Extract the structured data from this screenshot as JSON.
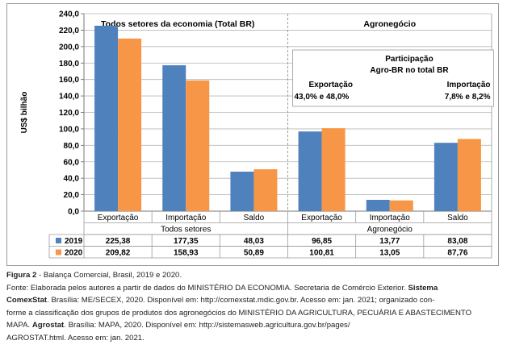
{
  "chart_data": {
    "type": "bar",
    "ylabel": "US$ bilhão",
    "ylim": [
      0,
      240
    ],
    "yticks": [
      "0,0",
      "20,0",
      "40,0",
      "60,0",
      "80,0",
      "100,0",
      "120,0",
      "140,0",
      "160,0",
      "180,0",
      "200,0",
      "220,0",
      "240,0"
    ],
    "grid": true,
    "panels": [
      {
        "title": "Todos setores da economia (Total BR)",
        "group_label": "Todos setores"
      },
      {
        "title": "Agronegócio",
        "group_label": "Agronegócio"
      }
    ],
    "categories": [
      "Exportação",
      "Importação",
      "Saldo",
      "Exportação",
      "Importação",
      "Saldo"
    ],
    "series": [
      {
        "name": "2019",
        "color": "#4f81bd",
        "values": [
          225.38,
          177.35,
          48.03,
          96.85,
          13.77,
          83.08
        ],
        "labels": [
          "225,38",
          "177,35",
          "48,03",
          "96,85",
          "13,77",
          "83,08"
        ]
      },
      {
        "name": "2020",
        "color": "#f79646",
        "values": [
          209.82,
          158.93,
          50.89,
          100.81,
          13.05,
          87.76
        ],
        "labels": [
          "209,82",
          "158,93",
          "50,89",
          "100,81",
          "13,05",
          "87,76"
        ]
      }
    ],
    "annotation": {
      "title_line1": "Participação",
      "title_line2": "Agro-BR no total BR",
      "left_label": "Exportação",
      "left_value": "43,0% e 48,0%",
      "right_label": "Importação",
      "right_value": "7,8% e 8,2%"
    }
  },
  "caption": {
    "figure_label": "Figura 2",
    "figure_title": " - Balança Comercial, Brasil, 2019 e 2020.",
    "line2_a": "Fonte: Elaborada pelos autores a partir de dados do MINISTÉRIO DA ECONOMIA. Secretaria de Comércio Exterior. ",
    "line2_b": "Sistema",
    "line3_a": "ComexStat",
    "line3_b": ". Brasília: ME/SECEX, 2020. Disponível em: http://comexstat.mdic.gov.br. Acesso em: jan. 2021; organizado con-",
    "line4": "forme a classificação dos grupos de produtos dos agronegócios do MINISTÉRIO DA AGRICULTURA, PECUÁRIA E ABASTECIMENTO",
    "line5_a": "MAPA. ",
    "line5_b": "Agrostat",
    "line5_c": ". Brasília: MAPA, 2020. Disponível em: http://sistemasweb.agricultura.gov.br/pages/",
    "line6": "AGROSTAT.html. Acesso em: jan. 2021."
  }
}
